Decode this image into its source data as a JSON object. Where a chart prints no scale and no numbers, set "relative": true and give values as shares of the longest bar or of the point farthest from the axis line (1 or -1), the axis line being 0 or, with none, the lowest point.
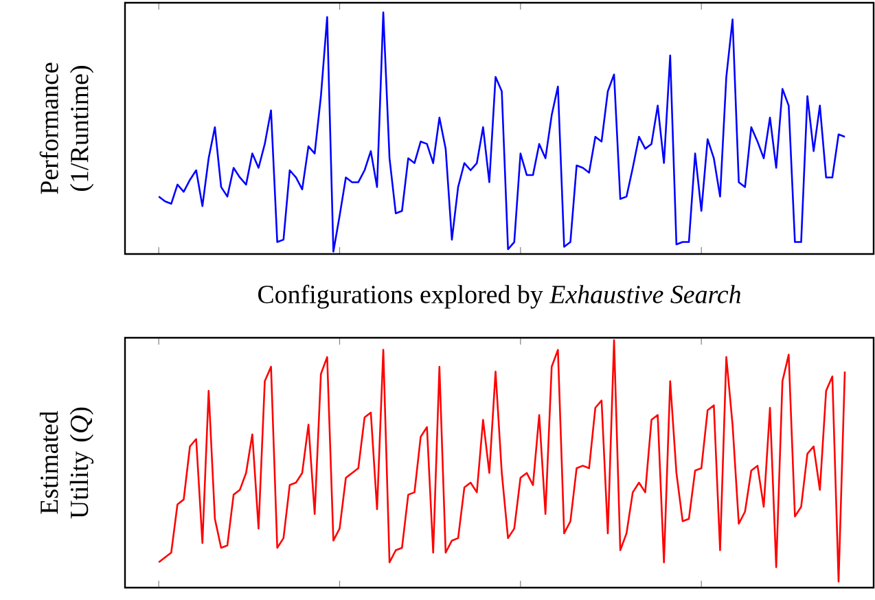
{
  "chart_data": [
    {
      "type": "line",
      "relative": true,
      "tick_labels": false,
      "xlabel": "Configurations explored by *Exhaustive Search*",
      "ylabel": "Performance (1/Runtime)",
      "categories": [
        null,
        null,
        null,
        null,
        null,
        null,
        null,
        null,
        null,
        null,
        null,
        null,
        null,
        null,
        null,
        null,
        null,
        null,
        null,
        null,
        null,
        null,
        null,
        null,
        null,
        null,
        null,
        null,
        null,
        null,
        null,
        null,
        null,
        null,
        null,
        null,
        null,
        null,
        null,
        null,
        null,
        null,
        null,
        null,
        null,
        null,
        null,
        null,
        null,
        null,
        null,
        null,
        null,
        null,
        null,
        null,
        null,
        null,
        null,
        null,
        null,
        null,
        null,
        null,
        null,
        null,
        null,
        null,
        null,
        null,
        null,
        null,
        null,
        null,
        null,
        null,
        null,
        null,
        null,
        null,
        null,
        null,
        null,
        null,
        null,
        null,
        null,
        null,
        null,
        null,
        null,
        null,
        null,
        null,
        null,
        null,
        null,
        null,
        null,
        null,
        null,
        null,
        null,
        null,
        null,
        null,
        null,
        null,
        null,
        null,
        null
      ],
      "series": [
        {
          "color": "#0000ff",
          "values": [
            0.23,
            0.21,
            0.2,
            0.28,
            0.25,
            0.3,
            0.34,
            0.19,
            0.39,
            0.52,
            0.27,
            0.23,
            0.35,
            0.31,
            0.28,
            0.41,
            0.35,
            0.45,
            0.59,
            0.04,
            0.05,
            0.34,
            0.31,
            0.26,
            0.44,
            0.41,
            0.65,
            0.98,
            0.0,
            0.15,
            0.31,
            0.29,
            0.29,
            0.34,
            0.42,
            0.27,
            1.0,
            0.39,
            0.16,
            0.17,
            0.39,
            0.37,
            0.46,
            0.45,
            0.37,
            0.56,
            0.43,
            0.05,
            0.27,
            0.37,
            0.34,
            0.37,
            0.52,
            0.29,
            0.73,
            0.67,
            0.01,
            0.04,
            0.41,
            0.32,
            0.32,
            0.45,
            0.39,
            0.57,
            0.69,
            0.02,
            0.04,
            0.36,
            0.35,
            0.33,
            0.48,
            0.46,
            0.67,
            0.74,
            0.22,
            0.23,
            0.35,
            0.48,
            0.43,
            0.45,
            0.61,
            0.37,
            0.82,
            0.03,
            0.04,
            0.04,
            0.41,
            0.17,
            0.47,
            0.39,
            0.23,
            0.73,
            0.97,
            0.29,
            0.27,
            0.52,
            0.46,
            0.39,
            0.56,
            0.35,
            0.68,
            0.61,
            0.04,
            0.04,
            0.65,
            0.42,
            0.61,
            0.31,
            0.31,
            0.49,
            0.48
          ]
        }
      ]
    },
    {
      "type": "line",
      "relative": true,
      "tick_labels": false,
      "ylabel": "Estimated Utility (*Q*)",
      "categories": [
        null,
        null,
        null,
        null,
        null,
        null,
        null,
        null,
        null,
        null,
        null,
        null,
        null,
        null,
        null,
        null,
        null,
        null,
        null,
        null,
        null,
        null,
        null,
        null,
        null,
        null,
        null,
        null,
        null,
        null,
        null,
        null,
        null,
        null,
        null,
        null,
        null,
        null,
        null,
        null,
        null,
        null,
        null,
        null,
        null,
        null,
        null,
        null,
        null,
        null,
        null,
        null,
        null,
        null,
        null,
        null,
        null,
        null,
        null,
        null,
        null,
        null,
        null,
        null,
        null,
        null,
        null,
        null,
        null,
        null,
        null,
        null,
        null,
        null,
        null,
        null,
        null,
        null,
        null,
        null,
        null,
        null,
        null,
        null,
        null,
        null,
        null,
        null,
        null,
        null,
        null,
        null,
        null,
        null,
        null,
        null,
        null,
        null,
        null,
        null,
        null,
        null,
        null,
        null,
        null,
        null,
        null,
        null,
        null,
        null,
        null
      ],
      "series": [
        {
          "color": "#ff0000",
          "values": [
            0.08,
            0.1,
            0.12,
            0.32,
            0.34,
            0.56,
            0.59,
            0.16,
            0.79,
            0.26,
            0.14,
            0.15,
            0.36,
            0.38,
            0.45,
            0.61,
            0.22,
            0.83,
            0.89,
            0.14,
            0.18,
            0.4,
            0.41,
            0.45,
            0.65,
            0.28,
            0.86,
            0.93,
            0.17,
            0.22,
            0.43,
            0.45,
            0.47,
            0.68,
            0.7,
            0.3,
            0.96,
            0.08,
            0.13,
            0.14,
            0.36,
            0.37,
            0.6,
            0.64,
            0.12,
            0.89,
            0.12,
            0.17,
            0.18,
            0.39,
            0.41,
            0.37,
            0.67,
            0.45,
            0.87,
            0.45,
            0.18,
            0.22,
            0.43,
            0.45,
            0.4,
            0.69,
            0.28,
            0.89,
            0.96,
            0.2,
            0.25,
            0.47,
            0.48,
            0.47,
            0.72,
            0.75,
            0.2,
            1.0,
            0.13,
            0.2,
            0.37,
            0.41,
            0.37,
            0.67,
            0.69,
            0.08,
            0.83,
            0.45,
            0.25,
            0.26,
            0.46,
            0.47,
            0.71,
            0.73,
            0.13,
            0.93,
            0.65,
            0.24,
            0.29,
            0.46,
            0.48,
            0.31,
            0.72,
            0.06,
            0.83,
            0.94,
            0.27,
            0.31,
            0.53,
            0.56,
            0.38,
            0.79,
            0.85,
            0.0,
            0.87
          ]
        }
      ]
    }
  ]
}
